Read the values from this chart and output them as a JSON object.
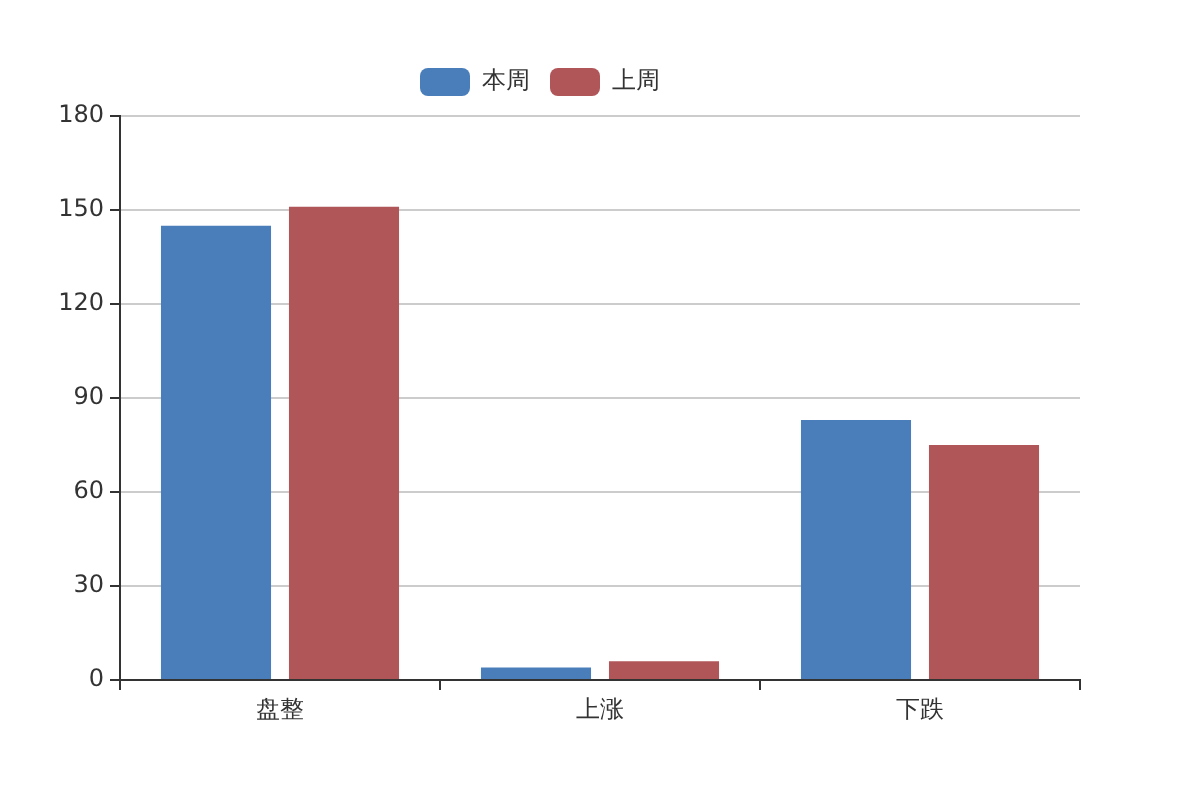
{
  "chart_data": {
    "type": "bar",
    "categories": [
      "盘整",
      "上涨",
      "下跌"
    ],
    "series": [
      {
        "name": "本周",
        "color": "#4a7ebb",
        "values": [
          145,
          4,
          83
        ]
      },
      {
        "name": "上周",
        "color": "#b05558",
        "values": [
          151,
          6,
          75
        ]
      }
    ],
    "ylim": [
      0,
      180
    ],
    "yticks": [
      0,
      30,
      60,
      90,
      120,
      150,
      180
    ],
    "grid": "y",
    "legend": "top"
  }
}
